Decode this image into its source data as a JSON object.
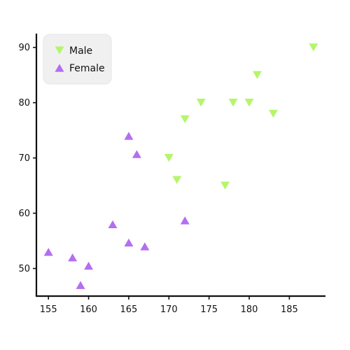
{
  "chart_data": {
    "type": "scatter",
    "title": "",
    "xlabel": "",
    "ylabel": "",
    "xlim": [
      153.5,
      189.5
    ],
    "ylim": [
      45,
      92.5
    ],
    "x_ticks": [
      155,
      160,
      165,
      170,
      175,
      180,
      185
    ],
    "y_ticks": [
      50,
      60,
      70,
      80,
      90
    ],
    "grid": false,
    "legend_position": "top-left",
    "series": [
      {
        "name": "Male",
        "marker": "triangle-down",
        "color": "#b5f56b",
        "points": [
          {
            "x": 170,
            "y": 70
          },
          {
            "x": 171,
            "y": 66
          },
          {
            "x": 172,
            "y": 77
          },
          {
            "x": 174,
            "y": 80
          },
          {
            "x": 177,
            "y": 65
          },
          {
            "x": 178,
            "y": 80
          },
          {
            "x": 180,
            "y": 80
          },
          {
            "x": 181,
            "y": 85
          },
          {
            "x": 183,
            "y": 78
          },
          {
            "x": 188,
            "y": 90
          }
        ]
      },
      {
        "name": "Female",
        "marker": "triangle-up",
        "color": "#b46ef0",
        "points": [
          {
            "x": 155,
            "y": 53
          },
          {
            "x": 158,
            "y": 52
          },
          {
            "x": 159,
            "y": 47
          },
          {
            "x": 160,
            "y": 50.5
          },
          {
            "x": 163,
            "y": 58
          },
          {
            "x": 165,
            "y": 74
          },
          {
            "x": 165,
            "y": 54.7
          },
          {
            "x": 166,
            "y": 70.7
          },
          {
            "x": 167,
            "y": 54
          },
          {
            "x": 172,
            "y": 58.7
          }
        ]
      }
    ]
  }
}
